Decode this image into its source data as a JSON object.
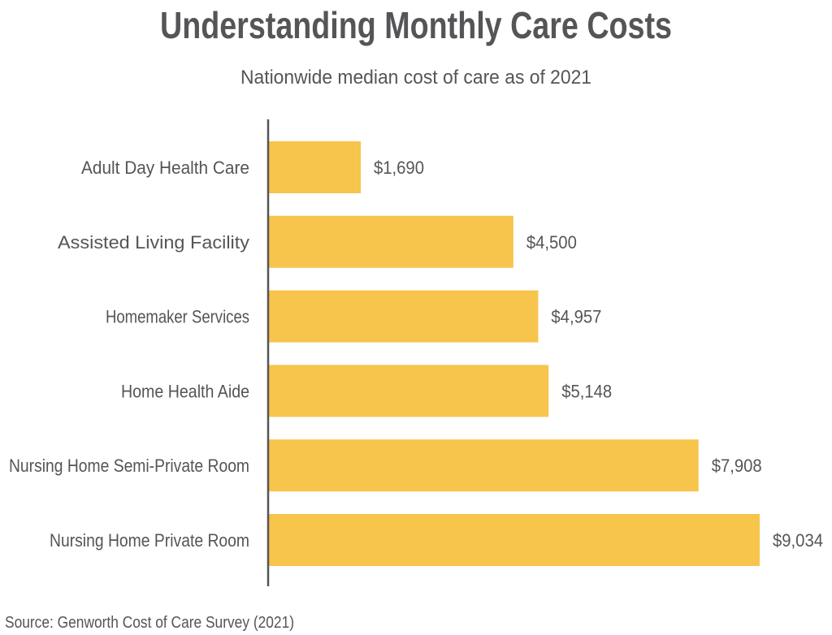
{
  "chart_data": {
    "type": "bar",
    "orientation": "horizontal",
    "title": "Understanding Monthly Care Costs",
    "subtitle": "Nationwide median cost of care as of 2021",
    "categories": [
      "Adult Day Health Care",
      "Assisted Living Facility",
      "Homemaker Services",
      "Home Health Aide",
      "Nursing Home Semi-Private Room",
      "Nursing Home Private Room"
    ],
    "values": [
      1690,
      4500,
      4957,
      5148,
      7908,
      9034
    ],
    "data_labels": [
      "$1,690",
      "$4,500",
      "$4,957",
      "$5,148",
      "$7,908",
      "$9,034"
    ],
    "xlabel": "",
    "ylabel": "",
    "xlim": [
      0,
      9034
    ],
    "grid": false,
    "bar_color": "#F7C44C",
    "text_color": "#555558",
    "source": "Source: Genworth Cost of Care Survey (2021)"
  }
}
